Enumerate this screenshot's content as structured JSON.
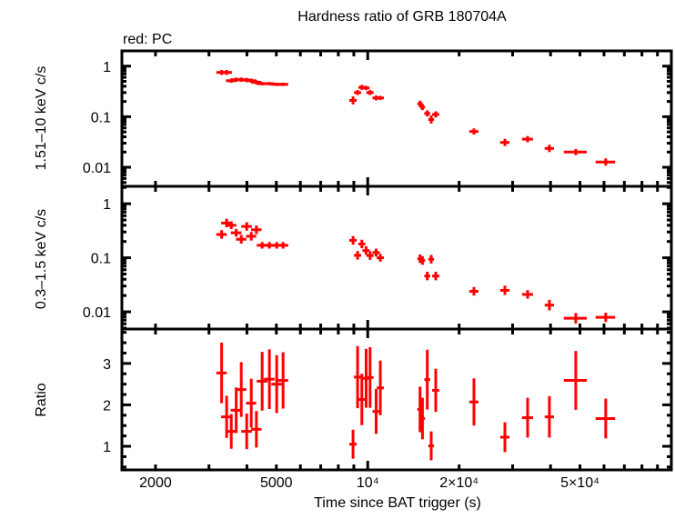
{
  "chart_data": [
    {
      "type": "scatter",
      "title": "Hardness ratio of GRB 180704A",
      "subtitle": "red: PC",
      "xlabel": "Time since BAT trigger (s)",
      "xscale": "log",
      "xlim": [
        1550,
        100000
      ],
      "xticks": [
        {
          "value": 2000,
          "label": "2000"
        },
        {
          "value": 5000,
          "label": "5000"
        },
        {
          "value": 10000,
          "label": "10⁴"
        },
        {
          "value": 20000,
          "label": "2×10⁴"
        },
        {
          "value": 50000,
          "label": "5×10⁴"
        }
      ],
      "grid": false,
      "color": "#ff0000",
      "x": [
        3302,
        3430,
        3552,
        3688,
        3832,
        3994,
        4134,
        4298,
        4490,
        4744,
        5014,
        5262,
        8946,
        9260,
        9564,
        9878,
        10178,
        10658,
        11002,
        14868,
        15144,
        15708,
        16182,
        16750,
        22380,
        28300,
        33620,
        39660,
        48440,
        60800
      ],
      "xerr": [
        130,
        140,
        140,
        150,
        150,
        160,
        160,
        170,
        180,
        190,
        200,
        210,
        250,
        250,
        250,
        270,
        280,
        290,
        300,
        300,
        300,
        350,
        350,
        450,
        780,
        1000,
        1400,
        1400,
        4200,
        4500
      ],
      "panels": [
        {
          "ylabel": "1.51–10 keV c/s",
          "yscale": "log",
          "ylim": [
            0.0042,
            2.0
          ],
          "yticks": [
            {
              "value": 1,
              "label": "1"
            },
            {
              "value": 0.1,
              "label": "0.1"
            },
            {
              "value": 0.01,
              "label": "0.01"
            }
          ],
          "y": [
            0.75,
            0.75,
            0.515,
            0.54,
            0.54,
            0.53,
            0.515,
            0.48,
            0.45,
            0.45,
            0.436,
            0.436,
            0.21,
            0.3,
            0.38,
            0.37,
            0.3,
            0.235,
            0.235,
            0.18,
            0.155,
            0.116,
            0.088,
            0.111,
            0.051,
            0.031,
            0.036,
            0.0236,
            0.02,
            0.0127
          ],
          "yerr_frac": [
            0.12,
            0.12,
            0.1,
            0.1,
            0.1,
            0.1,
            0.1,
            0.1,
            0.08,
            0.08,
            0.08,
            0.08,
            0.2,
            0.12,
            0.12,
            0.1,
            0.12,
            0.12,
            0.1,
            0.15,
            0.15,
            0.15,
            0.2,
            0.15,
            0.15,
            0.18,
            0.15,
            0.18,
            0.15,
            0.18
          ]
        },
        {
          "ylabel": "0.3–1.5 keV c/s",
          "yscale": "log",
          "ylim": [
            0.0048,
            2.1
          ],
          "yticks": [
            {
              "value": 1,
              "label": "1"
            },
            {
              "value": 0.1,
              "label": "0.1"
            },
            {
              "value": 0.01,
              "label": "0.01"
            }
          ],
          "y": [
            0.27,
            0.44,
            0.4,
            0.29,
            0.22,
            0.38,
            0.25,
            0.33,
            0.17,
            0.17,
            0.17,
            0.17,
            0.21,
            0.111,
            0.18,
            0.136,
            0.11,
            0.125,
            0.1,
            0.096,
            0.089,
            0.046,
            0.094,
            0.046,
            0.024,
            0.025,
            0.021,
            0.0133,
            0.0076,
            0.0079
          ],
          "yerr_frac": [
            0.2,
            0.2,
            0.18,
            0.18,
            0.2,
            0.2,
            0.2,
            0.2,
            0.15,
            0.15,
            0.15,
            0.15,
            0.2,
            0.2,
            0.2,
            0.2,
            0.2,
            0.18,
            0.18,
            0.2,
            0.2,
            0.2,
            0.2,
            0.2,
            0.2,
            0.22,
            0.2,
            0.25,
            0.25,
            0.22
          ]
        },
        {
          "ylabel": "Ratio",
          "yscale": "linear",
          "ylim": [
            0.43,
            3.83
          ],
          "yticks": [
            {
              "value": 3,
              "label": "3"
            },
            {
              "value": 2,
              "label": "2"
            },
            {
              "value": 1,
              "label": "1"
            }
          ],
          "y": [
            2.77,
            1.71,
            1.36,
            1.87,
            2.37,
            1.36,
            2.04,
            1.41,
            2.57,
            2.62,
            2.5,
            2.59,
            1.05,
            2.67,
            2.13,
            2.64,
            2.66,
            1.84,
            2.41,
            1.89,
            1.67,
            2.61,
            1.01,
            2.35,
            2.07,
            1.22,
            1.69,
            1.71,
            2.59,
            1.67
          ],
          "yerr": [
            0.73,
            0.51,
            0.42,
            0.55,
            0.66,
            0.43,
            0.59,
            0.44,
            0.71,
            0.72,
            0.7,
            0.68,
            0.35,
            0.75,
            0.62,
            0.71,
            0.73,
            0.54,
            0.66,
            0.55,
            0.5,
            0.72,
            0.35,
            0.52,
            0.57,
            0.36,
            0.48,
            0.5,
            0.71,
            0.48
          ]
        }
      ]
    }
  ]
}
